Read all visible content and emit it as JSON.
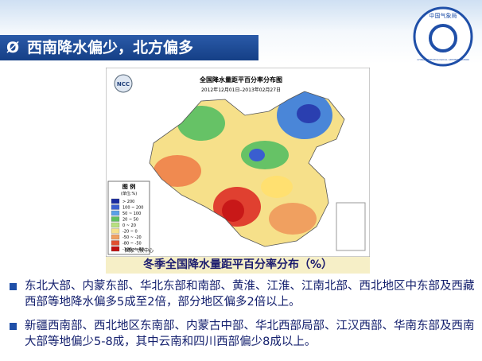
{
  "header": {
    "title": "西南降水偏少，北方偏多",
    "bullet_symbol": "Ø"
  },
  "logo": {
    "name": "中国气象局",
    "english": "CHINA METEOROLOGICAL ADMINISTRATION"
  },
  "map": {
    "title": "全国降水量距平百分率分布图",
    "subtitle": "2012年12月01日–2013年02月27日",
    "agency_logo": "NCC",
    "credit": "国家气候中心",
    "legend": {
      "title": "图 例",
      "unit": "(单位:%)",
      "items": [
        "> 200",
        "100 ~ 200",
        "50 ~ 100",
        "20 ~ 50",
        "0 ~ 20",
        "-20 ~ 0",
        "-50 ~ -20",
        "-80 ~ -50",
        "-100 ~ -80"
      ]
    }
  },
  "caption": "冬季全国降水量距平百分率分布（%）",
  "bullets": [
    "东北大部、内蒙东部、华北东部和南部、黄淮、江淮、江南北部、西北地区中东部及西藏西部等地降水偏多5成至2倍，部分地区偏多2倍以上。",
    "新疆西南部、西北地区东南部、内蒙古中部、华北西部局部、江汉西部、华南东部及西南大部等地偏少5-8成，其中云南和四川西部偏少8成以上。"
  ]
}
